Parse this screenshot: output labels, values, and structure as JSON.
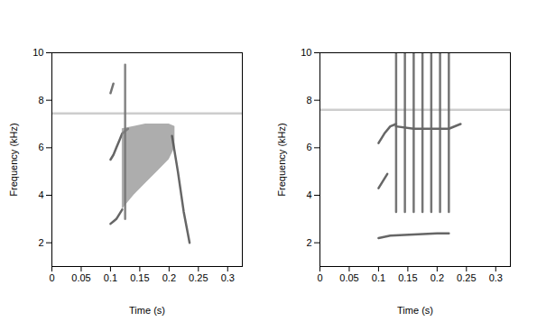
{
  "chart_data": [
    {
      "type": "line",
      "xlabel": "Time (s)",
      "ylabel": "Frequency (kHz)",
      "xlim": [
        0,
        0.325
      ],
      "ylim": [
        1,
        10
      ],
      "xticks": [
        0,
        0.05,
        0.1,
        0.15,
        0.2,
        0.25,
        0.3
      ],
      "yticks": [
        2,
        4,
        6,
        8,
        10
      ],
      "series": [
        {
          "color": "#c8c8c8",
          "x": [
            0,
            0.1,
            0.2,
            0.325
          ],
          "values": [
            7.45,
            7.45,
            7.45,
            7.45
          ]
        },
        {
          "color": "#555555",
          "x": [
            0.1,
            0.105,
            0.11,
            0.115,
            0.12
          ],
          "values": [
            2.8,
            2.9,
            3.0,
            3.2,
            3.4
          ]
        },
        {
          "color": "#555555",
          "x": [
            0.1,
            0.105,
            0.11,
            0.115,
            0.12,
            0.13
          ],
          "values": [
            5.5,
            5.7,
            6.0,
            6.3,
            6.6,
            6.8
          ]
        },
        {
          "type": "area",
          "color": "#8a8a8a",
          "x": [
            0.12,
            0.14,
            0.16,
            0.18,
            0.2,
            0.21
          ],
          "values": [
            6.8,
            6.9,
            7.0,
            7.0,
            7.0,
            6.9
          ],
          "low": [
            3.4,
            4.0,
            4.5,
            5.0,
            5.5,
            6.0
          ]
        },
        {
          "color": "#555555",
          "x": [
            0.205,
            0.215,
            0.225,
            0.235
          ],
          "values": [
            6.5,
            5.0,
            3.3,
            2.0
          ]
        },
        {
          "color": "#666666",
          "x": [
            0.1,
            0.105
          ],
          "values": [
            8.3,
            8.7
          ]
        },
        {
          "color": "#777777",
          "x": [
            0.125,
            0.125
          ],
          "values": [
            3.0,
            9.5
          ]
        }
      ]
    },
    {
      "type": "line",
      "xlabel": "Time (s)",
      "ylabel": "Frequency (kHz)",
      "xlim": [
        0,
        0.325
      ],
      "ylim": [
        1,
        10
      ],
      "xticks": [
        0,
        0.05,
        0.1,
        0.15,
        0.2,
        0.25,
        0.3
      ],
      "yticks": [
        2,
        4,
        6,
        8,
        10
      ],
      "series": [
        {
          "color": "#c8c8c8",
          "x": [
            0,
            0.1,
            0.2,
            0.325
          ],
          "values": [
            7.6,
            7.6,
            7.6,
            7.6
          ]
        },
        {
          "color": "#555555",
          "x": [
            0.1,
            0.105,
            0.11,
            0.115
          ],
          "values": [
            4.3,
            4.5,
            4.7,
            4.9
          ]
        },
        {
          "color": "#555555",
          "x": [
            0.1,
            0.11,
            0.12,
            0.13
          ],
          "values": [
            6.2,
            6.6,
            6.9,
            7.0
          ]
        },
        {
          "color": "#555555",
          "x": [
            0.13,
            0.16,
            0.19,
            0.22,
            0.24
          ],
          "values": [
            6.9,
            6.8,
            6.8,
            6.8,
            7.0
          ]
        },
        {
          "color": "#555555",
          "x": [
            0.1,
            0.12,
            0.2,
            0.22
          ],
          "values": [
            2.2,
            2.3,
            2.4,
            2.4
          ]
        },
        {
          "color": "#666666",
          "x": [
            0.13,
            0.13
          ],
          "values": [
            3.3,
            10
          ]
        },
        {
          "color": "#666666",
          "x": [
            0.145,
            0.145
          ],
          "values": [
            3.3,
            10
          ]
        },
        {
          "color": "#666666",
          "x": [
            0.16,
            0.16
          ],
          "values": [
            3.3,
            10
          ]
        },
        {
          "color": "#666666",
          "x": [
            0.175,
            0.175
          ],
          "values": [
            3.3,
            10
          ]
        },
        {
          "color": "#666666",
          "x": [
            0.19,
            0.19
          ],
          "values": [
            3.3,
            10
          ]
        },
        {
          "color": "#666666",
          "x": [
            0.205,
            0.205
          ],
          "values": [
            3.3,
            10
          ]
        },
        {
          "color": "#666666",
          "x": [
            0.22,
            0.22
          ],
          "values": [
            3.3,
            10
          ]
        }
      ]
    }
  ]
}
